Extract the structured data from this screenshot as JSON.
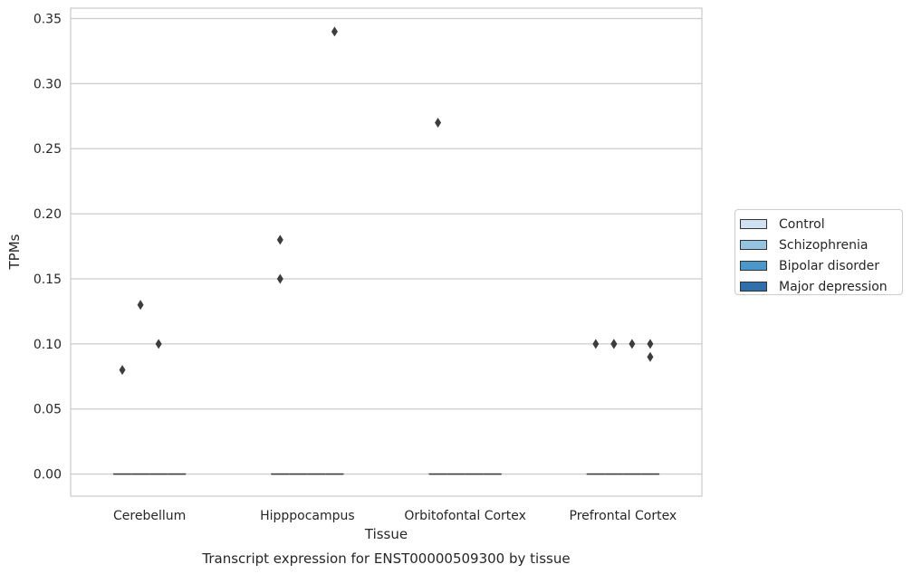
{
  "chart_data": {
    "type": "box",
    "title": "",
    "caption": "Transcript expression for ENST00000509300 by tissue",
    "xlabel": "Tissue",
    "ylabel": "TPMs",
    "ylim": [
      -0.017,
      0.358
    ],
    "yticks": [
      0.0,
      0.05,
      0.1,
      0.15,
      0.2,
      0.25,
      0.3,
      0.35
    ],
    "ytick_labels": [
      "0.00",
      "0.05",
      "0.10",
      "0.15",
      "0.20",
      "0.25",
      "0.30",
      "0.35"
    ],
    "grid": true,
    "legend_position": "right",
    "categories": [
      "Cerebellum",
      "Hipppocampus",
      "Orbitofontal Cortex",
      "Prefrontal Cortex"
    ],
    "series": [
      {
        "name": "Control",
        "color": "#d0e1f2",
        "boxes": [
          {
            "q1": 0,
            "median": 0,
            "q3": 0
          },
          {
            "q1": 0,
            "median": 0,
            "q3": 0
          },
          {
            "q1": 0,
            "median": 0,
            "q3": 0
          },
          {
            "q1": 0,
            "median": 0,
            "q3": 0
          }
        ],
        "outliers": [
          [
            0.08
          ],
          [
            0.18,
            0.15
          ],
          [
            0.27
          ],
          [
            0.1
          ]
        ]
      },
      {
        "name": "Schizophrenia",
        "color": "#94c4df",
        "boxes": [
          {
            "q1": 0,
            "median": 0,
            "q3": 0
          },
          {
            "q1": 0,
            "median": 0,
            "q3": 0
          },
          {
            "q1": 0,
            "median": 0,
            "q3": 0
          },
          {
            "q1": 0,
            "median": 0,
            "q3": 0
          }
        ],
        "outliers": [
          [
            0.13
          ],
          [],
          [],
          [
            0.1,
            0.1
          ]
        ]
      },
      {
        "name": "Bipolar disorder",
        "color": "#4a98c9",
        "boxes": [
          {
            "q1": 0,
            "median": 0,
            "q3": 0
          },
          {
            "q1": 0,
            "median": 0,
            "q3": 0
          },
          {
            "q1": 0,
            "median": 0,
            "q3": 0
          },
          {
            "q1": 0,
            "median": 0,
            "q3": 0
          }
        ],
        "outliers": [
          [
            0.1
          ],
          [],
          [],
          [
            0.1
          ]
        ]
      },
      {
        "name": "Major depression",
        "color": "#2e6fac",
        "boxes": [
          {
            "q1": 0,
            "median": 0,
            "q3": 0
          },
          {
            "q1": 0,
            "median": 0,
            "q3": 0
          },
          {
            "q1": 0,
            "median": 0,
            "q3": 0
          },
          {
            "q1": 0,
            "median": 0,
            "q3": 0
          }
        ],
        "outliers": [
          [],
          [
            0.34
          ],
          [],
          [
            0.1,
            0.09
          ]
        ]
      }
    ]
  }
}
